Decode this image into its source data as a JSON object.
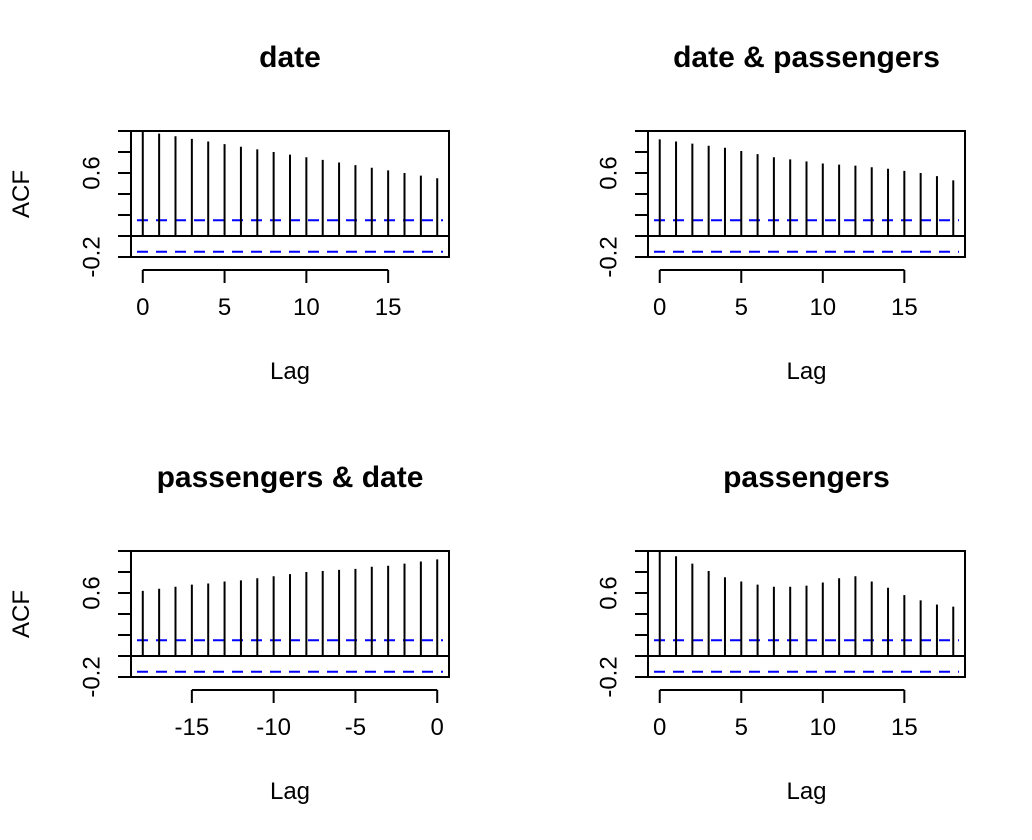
{
  "chart_data": [
    {
      "type": "bar",
      "title": "date",
      "xlabel": "Lag",
      "ylabel": "ACF",
      "xlim": [
        -0.72,
        18.72
      ],
      "ylim": [
        -0.2,
        1.0
      ],
      "xticks": [
        0,
        5,
        10,
        15
      ],
      "yticks": [
        -0.2,
        0.6
      ],
      "y_minor_ticks": [
        0.0,
        0.2,
        0.4,
        0.8,
        1.0
      ],
      "conf_limits": [
        0.15,
        -0.15
      ],
      "lags": [
        0,
        1,
        2,
        3,
        4,
        5,
        6,
        7,
        8,
        9,
        10,
        11,
        12,
        13,
        14,
        15,
        16,
        17,
        18
      ],
      "values": [
        1.0,
        0.975,
        0.95,
        0.925,
        0.9,
        0.875,
        0.85,
        0.825,
        0.8,
        0.775,
        0.75,
        0.725,
        0.7,
        0.675,
        0.65,
        0.625,
        0.6,
        0.575,
        0.55
      ]
    },
    {
      "type": "bar",
      "title": "date & passengers",
      "xlabel": "Lag",
      "ylabel": "",
      "xlim": [
        -0.72,
        18.72
      ],
      "ylim": [
        -0.2,
        1.0
      ],
      "xticks": [
        0,
        5,
        10,
        15
      ],
      "yticks": [
        -0.2,
        0.6
      ],
      "y_minor_ticks": [
        0.0,
        0.2,
        0.4,
        0.8,
        1.0
      ],
      "conf_limits": [
        0.15,
        -0.15
      ],
      "lags": [
        0,
        1,
        2,
        3,
        4,
        5,
        6,
        7,
        8,
        9,
        10,
        11,
        12,
        13,
        14,
        15,
        16,
        17,
        18
      ],
      "values": [
        0.92,
        0.9,
        0.88,
        0.86,
        0.84,
        0.81,
        0.78,
        0.75,
        0.73,
        0.71,
        0.69,
        0.68,
        0.67,
        0.655,
        0.64,
        0.62,
        0.6,
        0.57,
        0.53
      ]
    },
    {
      "type": "bar",
      "title": "passengers & date",
      "xlabel": "Lag",
      "ylabel": "ACF",
      "xlim": [
        -18.72,
        0.72
      ],
      "ylim": [
        -0.2,
        1.0
      ],
      "xticks": [
        -15,
        -10,
        -5,
        0
      ],
      "yticks": [
        -0.2,
        0.6
      ],
      "y_minor_ticks": [
        0.0,
        0.2,
        0.4,
        0.8,
        1.0
      ],
      "conf_limits": [
        0.15,
        -0.15
      ],
      "lags": [
        -18,
        -17,
        -16,
        -15,
        -14,
        -13,
        -12,
        -11,
        -10,
        -9,
        -8,
        -7,
        -6,
        -5,
        -4,
        -3,
        -2,
        -1,
        0
      ],
      "values": [
        0.62,
        0.64,
        0.66,
        0.68,
        0.69,
        0.71,
        0.72,
        0.74,
        0.76,
        0.78,
        0.8,
        0.81,
        0.82,
        0.83,
        0.85,
        0.86,
        0.88,
        0.9,
        0.92
      ]
    },
    {
      "type": "bar",
      "title": "passengers",
      "xlabel": "Lag",
      "ylabel": "",
      "xlim": [
        -0.72,
        18.72
      ],
      "ylim": [
        -0.2,
        1.0
      ],
      "xticks": [
        0,
        5,
        10,
        15
      ],
      "yticks": [
        -0.2,
        0.6
      ],
      "y_minor_ticks": [
        0.0,
        0.2,
        0.4,
        0.8,
        1.0
      ],
      "conf_limits": [
        0.15,
        -0.15
      ],
      "lags": [
        0,
        1,
        2,
        3,
        4,
        5,
        6,
        7,
        8,
        9,
        10,
        11,
        12,
        13,
        14,
        15,
        16,
        17,
        18
      ],
      "values": [
        1.0,
        0.95,
        0.88,
        0.81,
        0.75,
        0.71,
        0.68,
        0.66,
        0.66,
        0.67,
        0.7,
        0.74,
        0.76,
        0.71,
        0.65,
        0.58,
        0.53,
        0.49,
        0.47
      ]
    }
  ],
  "colors": {
    "bars": "#000000",
    "conf_limits": "#0000ff",
    "axes": "#000000"
  }
}
